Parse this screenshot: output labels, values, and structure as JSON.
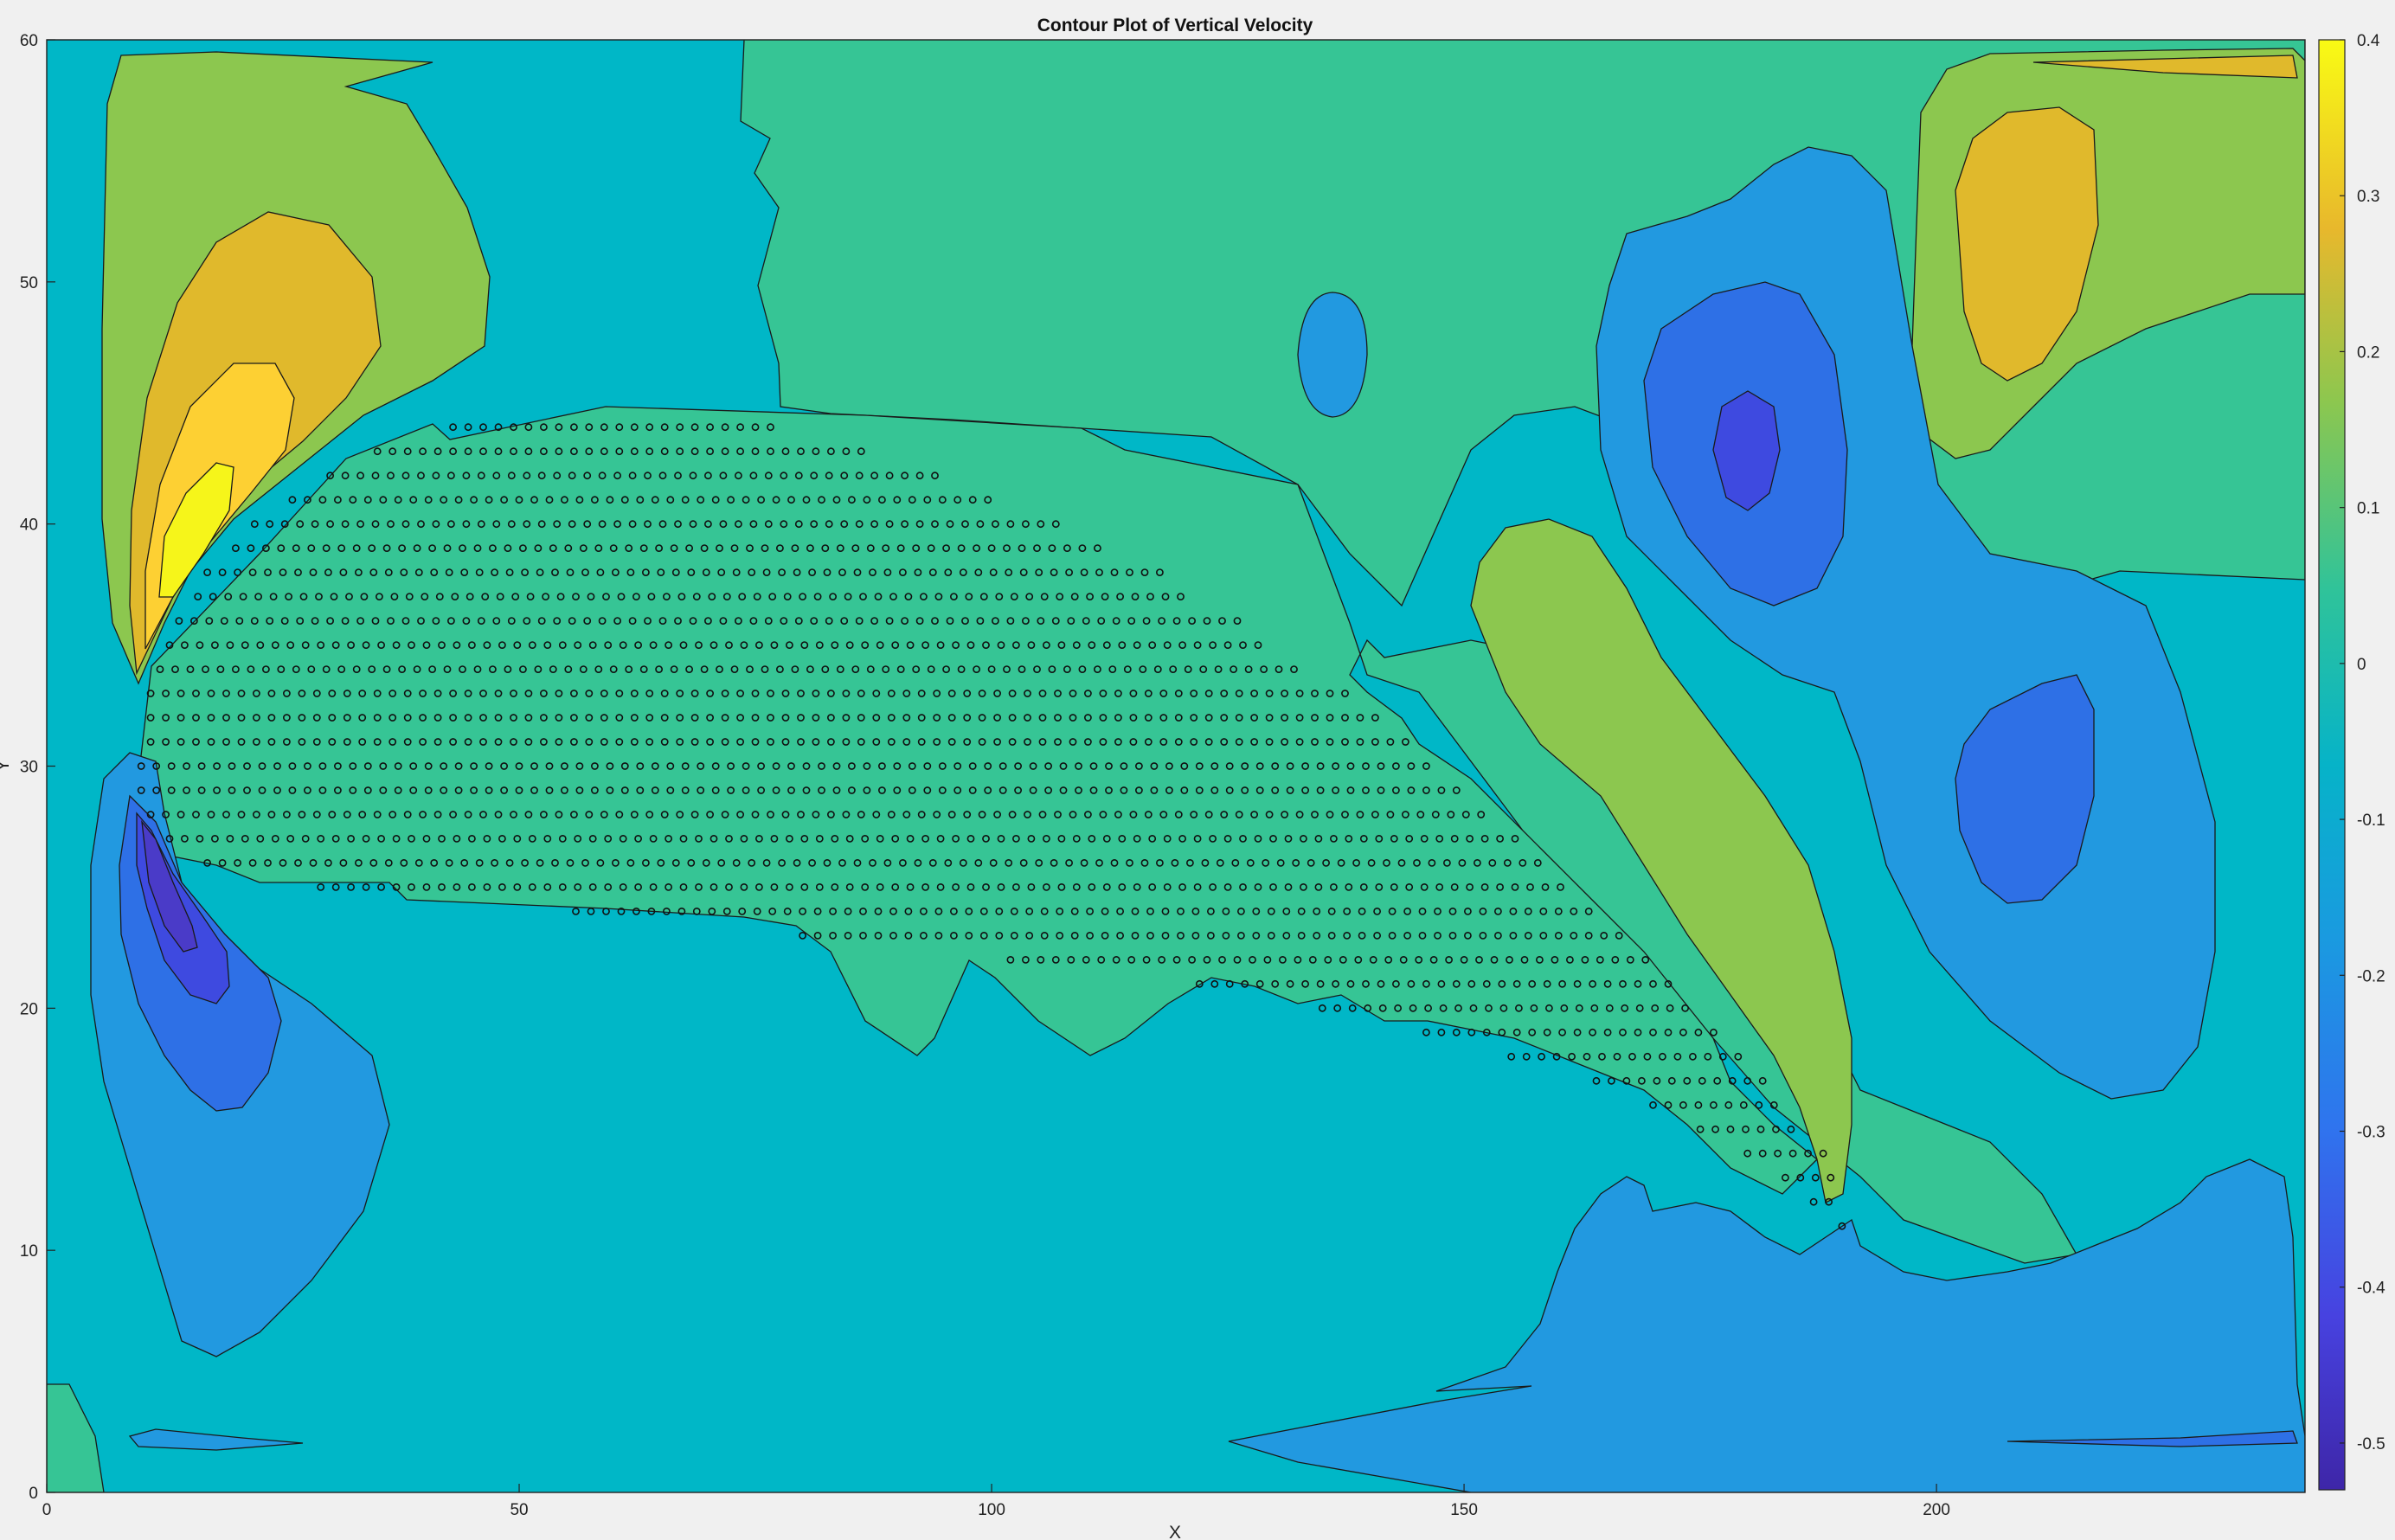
{
  "chart_data": {
    "type": "contour",
    "title": "Contour Plot of Vertical Velocity",
    "xlabel": "X",
    "ylabel": "Y",
    "xlim": [
      0,
      239
    ],
    "ylim": [
      0,
      60
    ],
    "x_ticks": [
      "0",
      "50",
      "100",
      "150",
      "200"
    ],
    "y_ticks": [
      "0",
      "10",
      "20",
      "30",
      "40",
      "50",
      "60"
    ],
    "colorbar": {
      "colormap": "parula",
      "range": [
        -0.53,
        0.4
      ],
      "ticks": [
        "0.4",
        "0.3",
        "0.2",
        "0.1",
        "0",
        "-0.1",
        "-0.2",
        "-0.3",
        "-0.4",
        "-0.5"
      ]
    },
    "levels": [
      -0.5,
      -0.4,
      -0.3,
      -0.2,
      -0.1,
      0,
      0.1,
      0.2,
      0.3,
      0.4
    ],
    "level_colors": {
      "-0.5": "#4a3bc8",
      "-0.4": "#3e4ae0",
      "-0.3": "#2e70e6",
      "-0.2": "#2299e0",
      "-0.1": "#00b7c7",
      "0": "#36c595",
      "0.1": "#8cc74f",
      "0.2": "#e0b92c",
      "0.3": "#fdd033",
      "0.4": "#f6f51a"
    },
    "features": [
      {
        "kind": "max",
        "x": 15,
        "y": 40,
        "value": 0.4
      },
      {
        "kind": "max",
        "x": 213,
        "y": 51,
        "value": 0.2
      },
      {
        "kind": "max",
        "x": 163,
        "y": 30,
        "value": 0.1
      },
      {
        "kind": "min",
        "x": 12,
        "y": 25,
        "value": -0.5
      },
      {
        "kind": "min",
        "x": 180,
        "y": 43,
        "value": -0.4
      },
      {
        "kind": "min",
        "x": 218,
        "y": 29,
        "value": -0.3
      },
      {
        "kind": "min",
        "x": 137,
        "y": 47,
        "value": -0.2
      }
    ],
    "markers": {
      "style": "open circle",
      "x_step": 1.6,
      "rows": [
        {
          "y": 44,
          "x0": 43,
          "x1": 77
        },
        {
          "y": 43,
          "x0": 35,
          "x1": 87
        },
        {
          "y": 42,
          "x0": 30,
          "x1": 95
        },
        {
          "y": 41,
          "x0": 26,
          "x1": 101
        },
        {
          "y": 40,
          "x0": 22,
          "x1": 107
        },
        {
          "y": 39,
          "x0": 20,
          "x1": 112
        },
        {
          "y": 38,
          "x0": 17,
          "x1": 118
        },
        {
          "y": 37,
          "x0": 16,
          "x1": 121
        },
        {
          "y": 36,
          "x0": 14,
          "x1": 126
        },
        {
          "y": 35,
          "x0": 13,
          "x1": 129
        },
        {
          "y": 34,
          "x0": 12,
          "x1": 133
        },
        {
          "y": 33,
          "x0": 11,
          "x1": 138
        },
        {
          "y": 32,
          "x0": 11,
          "x1": 141
        },
        {
          "y": 31,
          "x0": 11,
          "x1": 144
        },
        {
          "y": 30,
          "x0": 10,
          "x1": 147
        },
        {
          "y": 29,
          "x0": 10,
          "x1": 150
        },
        {
          "y": 28,
          "x0": 11,
          "x1": 153
        },
        {
          "y": 27,
          "x0": 13,
          "x1": 156
        },
        {
          "y": 26,
          "x0": 17,
          "x1": 159
        },
        {
          "y": 25,
          "x0": 29,
          "x1": 161
        },
        {
          "y": 24,
          "x0": 56,
          "x1": 164
        },
        {
          "y": 23,
          "x0": 80,
          "x1": 167
        },
        {
          "y": 22,
          "x0": 102,
          "x1": 170
        },
        {
          "y": 21,
          "x0": 122,
          "x1": 172
        },
        {
          "y": 20,
          "x0": 135,
          "x1": 174
        },
        {
          "y": 19,
          "x0": 146,
          "x1": 177
        },
        {
          "y": 18,
          "x0": 155,
          "x1": 179
        },
        {
          "y": 17,
          "x0": 164,
          "x1": 182
        },
        {
          "y": 16,
          "x0": 170,
          "x1": 184
        },
        {
          "y": 15,
          "x0": 175,
          "x1": 186
        },
        {
          "y": 14,
          "x0": 180,
          "x1": 188
        },
        {
          "y": 13,
          "x0": 184,
          "x1": 189
        },
        {
          "y": 12,
          "x0": 187,
          "x1": 190
        },
        {
          "y": 11,
          "x0": 190,
          "x1": 190
        }
      ]
    }
  }
}
